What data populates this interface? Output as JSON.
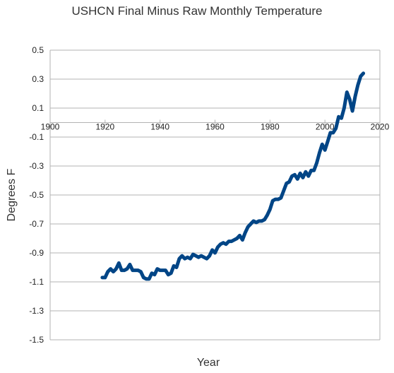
{
  "chart_data": {
    "type": "line",
    "title": "USHCN Final Minus Raw Monthly Temperature",
    "xlabel": "Year",
    "ylabel": "Degrees F",
    "xlim": [
      1900,
      2020
    ],
    "ylim": [
      -1.5,
      0.5
    ],
    "x_ticks": [
      1900,
      1920,
      1940,
      1960,
      1980,
      2000,
      2020
    ],
    "y_ticks": [
      0.5,
      0.3,
      0.1,
      -0.1,
      -0.3,
      -0.5,
      -0.7,
      -0.9,
      -1.1,
      -1.3,
      -1.5
    ],
    "x_tick_labels": [
      "1900",
      "1920",
      "1940",
      "1960",
      "1980",
      "2000",
      "2020"
    ],
    "y_tick_labels": [
      "0.5",
      "0.3",
      "0.1",
      "-0.1",
      "-0.3",
      "-0.5",
      "-0.7",
      "-0.9",
      "-1.1",
      "-1.3",
      "-1.5"
    ],
    "grid": "horizontal",
    "legend": "none",
    "series": [
      {
        "color": "#004586",
        "x": [
          1919,
          1920,
          1921,
          1922,
          1923,
          1924,
          1925,
          1926,
          1927,
          1928,
          1929,
          1930,
          1931,
          1932,
          1933,
          1934,
          1935,
          1936,
          1937,
          1938,
          1939,
          1940,
          1941,
          1942,
          1943,
          1944,
          1945,
          1946,
          1947,
          1948,
          1949,
          1950,
          1951,
          1952,
          1953,
          1954,
          1955,
          1956,
          1957,
          1958,
          1959,
          1960,
          1961,
          1962,
          1963,
          1964,
          1965,
          1966,
          1967,
          1968,
          1969,
          1970,
          1971,
          1972,
          1973,
          1974,
          1975,
          1976,
          1977,
          1978,
          1979,
          1980,
          1981,
          1982,
          1983,
          1984,
          1985,
          1986,
          1987,
          1988,
          1989,
          1990,
          1991,
          1992,
          1993,
          1994,
          1995,
          1996,
          1997,
          1998,
          1999,
          2000,
          2001,
          2002,
          2003,
          2004,
          2005,
          2006,
          2007,
          2008,
          2009,
          2010,
          2011,
          2012,
          2013,
          2014
        ],
        "y": [
          -1.07,
          -1.07,
          -1.03,
          -1.01,
          -1.03,
          -1.01,
          -0.97,
          -1.02,
          -1.02,
          -1.01,
          -0.98,
          -1.02,
          -1.02,
          -1.02,
          -1.03,
          -1.07,
          -1.08,
          -1.08,
          -1.04,
          -1.05,
          -1.01,
          -1.02,
          -1.02,
          -1.02,
          -1.05,
          -1.04,
          -0.99,
          -1.0,
          -0.94,
          -0.92,
          -0.94,
          -0.93,
          -0.94,
          -0.91,
          -0.92,
          -0.93,
          -0.92,
          -0.93,
          -0.94,
          -0.92,
          -0.88,
          -0.9,
          -0.86,
          -0.84,
          -0.83,
          -0.84,
          -0.82,
          -0.82,
          -0.81,
          -0.8,
          -0.78,
          -0.81,
          -0.76,
          -0.72,
          -0.7,
          -0.68,
          -0.69,
          -0.68,
          -0.68,
          -0.67,
          -0.64,
          -0.6,
          -0.54,
          -0.53,
          -0.53,
          -0.52,
          -0.47,
          -0.42,
          -0.41,
          -0.37,
          -0.36,
          -0.39,
          -0.35,
          -0.38,
          -0.34,
          -0.37,
          -0.33,
          -0.33,
          -0.28,
          -0.21,
          -0.15,
          -0.19,
          -0.13,
          -0.07,
          -0.07,
          -0.04,
          0.04,
          0.03,
          0.1,
          0.21,
          0.16,
          0.08,
          0.18,
          0.26,
          0.32,
          0.34
        ]
      }
    ]
  }
}
